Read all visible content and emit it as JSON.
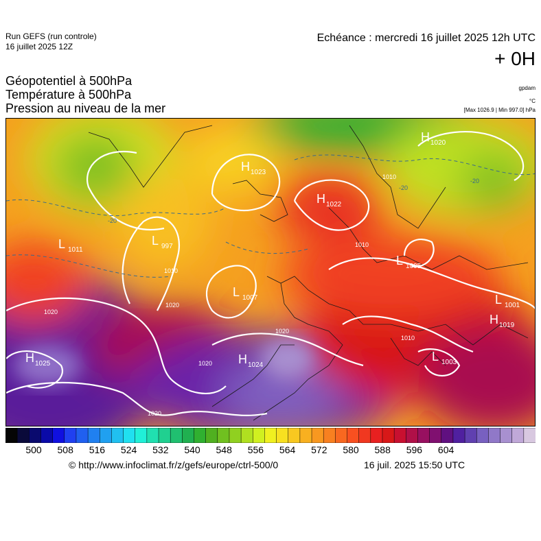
{
  "header": {
    "run_title": "Run GEFS (run controle)",
    "run_date": "16 juillet 2025 12Z",
    "echeance": "Echéance : mercredi 16 juillet 2025 12h UTC",
    "offset": "+ 0H",
    "title_lines": [
      "Géopotentiel à 500hPa",
      "Température à 500hPa",
      "Pression au niveau de la mer"
    ],
    "unit_geopotential": "gpdam",
    "unit_temperature": "°C",
    "pressure_range": "[Max 1026.9 | Min 997.0] hPa"
  },
  "map": {
    "region": "europe",
    "pressure_centers": [
      {
        "type": "H",
        "value": "1025",
        "color": "#ffffff"
      },
      {
        "type": "H",
        "value": "1024",
        "color": "#ffffff"
      },
      {
        "type": "L",
        "value": "1011",
        "color": "#ffffff"
      },
      {
        "type": "L",
        "value": "997",
        "color": "#ffffff"
      },
      {
        "type": "L",
        "value": "1007",
        "color": "#ffffff"
      },
      {
        "type": "H",
        "value": "1023",
        "color": "#ffffff"
      },
      {
        "type": "H",
        "value": "1022",
        "color": "#ffffff"
      },
      {
        "type": "H",
        "value": "1020",
        "color": "#ffffff"
      },
      {
        "type": "L",
        "value": "1005",
        "color": "#ffffff"
      },
      {
        "type": "L",
        "value": "1001",
        "color": "#ffffff"
      },
      {
        "type": "H",
        "value": "1019",
        "color": "#ffffff"
      },
      {
        "type": "L",
        "value": "1003",
        "color": "#ffffff"
      }
    ],
    "isobar_labels": [
      "1020",
      "1020",
      "1020",
      "1020",
      "1020",
      "1010",
      "1010",
      "1010",
      "1010"
    ],
    "temperature_labels": [
      "-20",
      "-20",
      "-20"
    ]
  },
  "colorbar": {
    "ticks": [
      "500",
      "508",
      "516",
      "524",
      "532",
      "540",
      "548",
      "556",
      "564",
      "572",
      "580",
      "588",
      "596",
      "604"
    ],
    "colors": [
      "#050505",
      "#0a0a3a",
      "#0a0a6e",
      "#0a0aa8",
      "#1010e0",
      "#2040f0",
      "#2060f0",
      "#2080f0",
      "#20a0f0",
      "#20c0f0",
      "#20e0f0",
      "#20f0d8",
      "#20e0b0",
      "#20d090",
      "#20c070",
      "#20b050",
      "#30b030",
      "#50b020",
      "#70c020",
      "#90d020",
      "#b0e020",
      "#d0f020",
      "#f0f020",
      "#f8e020",
      "#f8c820",
      "#f8b020",
      "#f89820",
      "#f88020",
      "#f86820",
      "#f85020",
      "#f03820",
      "#e82020",
      "#d81818",
      "#c81030",
      "#b01048",
      "#981060",
      "#801070",
      "#601080",
      "#5020a0",
      "#6040b0",
      "#7860c0",
      "#9078c8",
      "#a890d0",
      "#c0a8d8",
      "#d8c8e0"
    ],
    "units": "gpdam"
  },
  "footer": {
    "credit": "© http://www.infoclimat.fr/z/gefs/europe/ctrl-500/0",
    "generated": "16 juil. 2025 15:50 UTC"
  }
}
